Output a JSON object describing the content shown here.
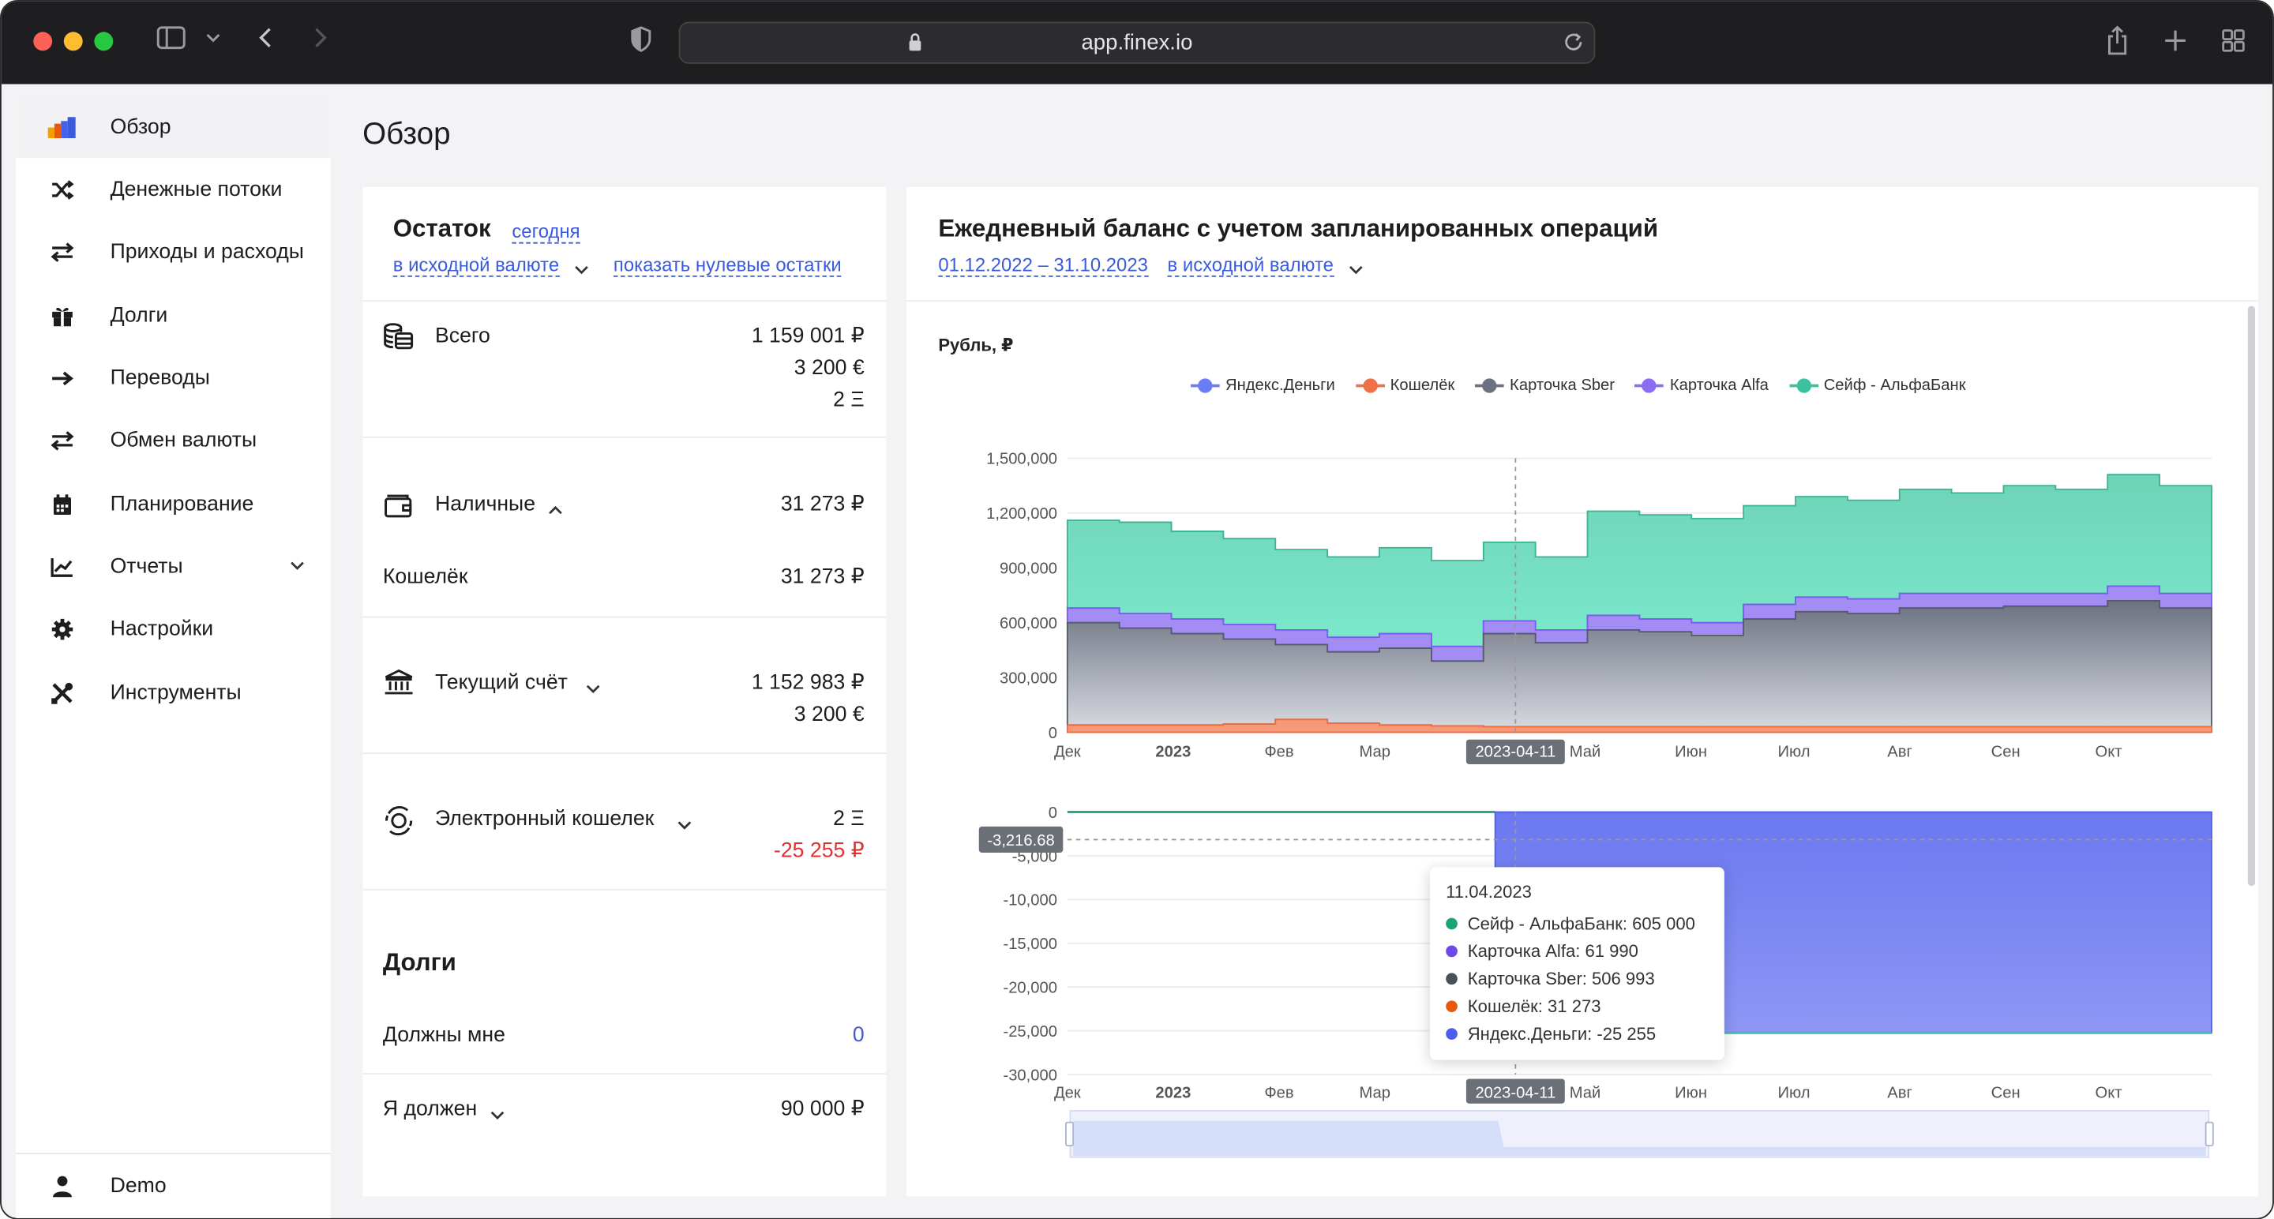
{
  "browser": {
    "url": "app.finex.io"
  },
  "sidebar": {
    "items": [
      {
        "label": "Обзор",
        "icon": "chart-bars-icon",
        "active": true
      },
      {
        "label": "Денежные потоки",
        "icon": "shuffle-icon"
      },
      {
        "label": "Приходы и расходы",
        "icon": "swap-arrows-icon"
      },
      {
        "label": "Долги",
        "icon": "gift-icon"
      },
      {
        "label": "Переводы",
        "icon": "arrow-right-icon"
      },
      {
        "label": "Обмен валюты",
        "icon": "exchange-icon"
      },
      {
        "label": "Планирование",
        "icon": "calendar-icon"
      },
      {
        "label": "Отчеты",
        "icon": "line-chart-icon",
        "has_submenu": true
      },
      {
        "label": "Настройки",
        "icon": "gear-icon"
      },
      {
        "label": "Инструменты",
        "icon": "tools-icon"
      }
    ],
    "user": {
      "label": "Demo",
      "icon": "user-icon"
    }
  },
  "page": {
    "title": "Обзор"
  },
  "balance": {
    "title": "Остаток",
    "date_link": "сегодня",
    "currency_link": "в исходной валюте",
    "zero_link": "показать нулевые остатки",
    "total": {
      "label": "Всего",
      "values": [
        "1 159 001 ₽",
        "3 200 €",
        "2 Ξ"
      ]
    },
    "groups": [
      {
        "label": "Наличные",
        "icon": "wallet-icon",
        "expanded": true,
        "values": [
          "31 273 ₽"
        ],
        "accounts": [
          {
            "label": "Кошелёк",
            "value": "31 273 ₽"
          }
        ]
      },
      {
        "label": "Текущий счёт",
        "icon": "bank-icon",
        "values": [
          "1 152 983 ₽",
          "3 200 €"
        ]
      },
      {
        "label": "Электронный кошелек",
        "icon": "ewallet-icon",
        "values": [
          "2 Ξ",
          "-25 255 ₽"
        ]
      }
    ],
    "debts": {
      "title": "Долги",
      "owed_to_me": {
        "label": "Должны мне",
        "value": "0"
      },
      "i_owe": {
        "label": "Я должен",
        "value": "90 000 ₽"
      }
    }
  },
  "chart_panel": {
    "title": "Ежедневный баланс с учетом запланированных операций",
    "period_link": "01.12.2022 – 31.10.2023",
    "currency_link": "в исходной валюте"
  },
  "chart_data": {
    "type": "area",
    "unit_label": "Рубль, ₽",
    "legend": [
      {
        "name": "Яндекс.Деньги",
        "color": "#6c7cf2"
      },
      {
        "name": "Кошелёк",
        "color": "#f07048"
      },
      {
        "name": "Карточка Sber",
        "color": "#6b7180"
      },
      {
        "name": "Карточка Alfa",
        "color": "#8b6cf2"
      },
      {
        "name": "Сейф - АльфаБанк",
        "color": "#3cc0a0"
      }
    ],
    "x_ticks": [
      "Дек",
      "2023",
      "Фев",
      "Мар",
      "Май",
      "Июн",
      "Июл",
      "Авг",
      "Сен",
      "Окт"
    ],
    "highlight_x": "2023-04-11",
    "upper": {
      "y_ticks": [
        "1,500,000",
        "1,200,000",
        "900,000",
        "600,000",
        "300,000",
        "0"
      ],
      "ylim": [
        0,
        1500000
      ],
      "stack_total": [
        1160000,
        1150000,
        1100000,
        1060000,
        1000000,
        960000,
        1010000,
        940000,
        1040000,
        960000,
        1210000,
        1190000,
        1170000,
        1240000,
        1290000,
        1270000,
        1330000,
        1310000,
        1350000,
        1330000,
        1410000,
        1350000
      ],
      "sber_alfa": [
        680000,
        650000,
        620000,
        590000,
        560000,
        520000,
        540000,
        470000,
        610000,
        560000,
        640000,
        620000,
        600000,
        700000,
        740000,
        730000,
        760000,
        760000,
        760000,
        760000,
        800000,
        760000
      ],
      "sber": [
        600000,
        570000,
        540000,
        510000,
        480000,
        440000,
        460000,
        390000,
        540000,
        490000,
        560000,
        550000,
        530000,
        620000,
        660000,
        650000,
        680000,
        680000,
        690000,
        690000,
        720000,
        680000
      ],
      "wallet": [
        40000,
        40000,
        40000,
        45000,
        70000,
        50000,
        40000,
        35000,
        31000,
        31000,
        31000,
        31000,
        31000,
        31000,
        31000,
        31000,
        31000,
        31000,
        31000,
        31000,
        31000,
        31000
      ]
    },
    "lower": {
      "y_ticks": [
        "0",
        "-5,000",
        "-10,000",
        "-15,000",
        "-20,000",
        "-25,000",
        "-30,000"
      ],
      "ylim": [
        -30000,
        0
      ],
      "crosshair_value": "-3,216.68",
      "series": "Яндекс.Деньги",
      "before_value": 0,
      "after_value": -25255
    },
    "tooltip": {
      "date": "11.04.2023",
      "rows": [
        {
          "text": "Сейф - АльфаБанк: 605 000",
          "color": "#1aa37a"
        },
        {
          "text": "Карточка Alfa: 61 990",
          "color": "#7048e8"
        },
        {
          "text": "Карточка Sber: 506 993",
          "color": "#495057"
        },
        {
          "text": "Кошелёк: 31 273",
          "color": "#e8590c"
        },
        {
          "text": "Яндекс.Деньги: -25 255",
          "color": "#4c5bf0"
        }
      ]
    }
  }
}
